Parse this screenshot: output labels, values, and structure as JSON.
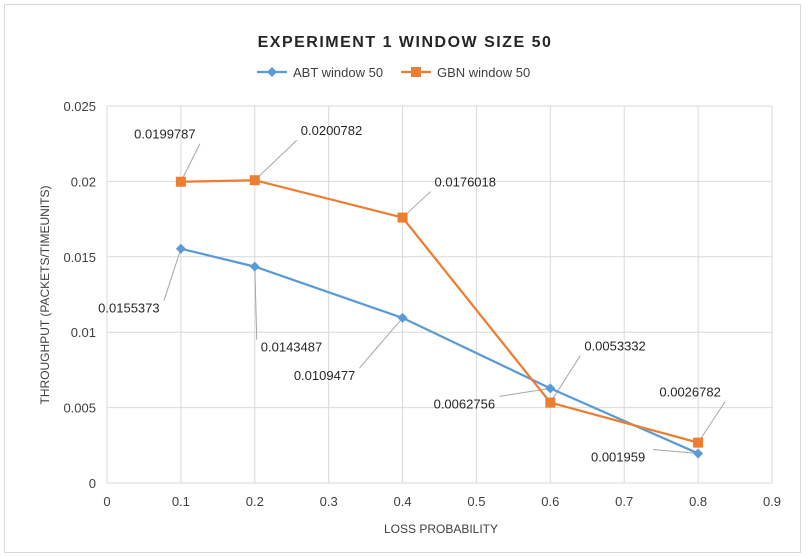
{
  "chart_data": {
    "type": "line",
    "title": "EXPERIMENT 1 WINDOW SIZE 50",
    "xlabel": "LOSS PROBABILITY",
    "ylabel": "THROUGHPUT   (PACKETS/TIMEUNITS)",
    "xlim": [
      0,
      0.9
    ],
    "ylim": [
      0,
      0.025
    ],
    "x_ticks": [
      "0",
      "0.1",
      "0.2",
      "0.3",
      "0.4",
      "0.5",
      "0.6",
      "0.7",
      "0.8",
      "0.9"
    ],
    "y_ticks": [
      "0",
      "0.005",
      "0.01",
      "0.015",
      "0.02",
      "0.025"
    ],
    "grid": true,
    "legend_position": "top",
    "series": [
      {
        "name": "ABT window 50",
        "color": "#5b9bd5",
        "marker": "diamond",
        "x": [
          0.1,
          0.2,
          0.4,
          0.6,
          0.8
        ],
        "y": [
          0.0155373,
          0.0143487,
          0.0109477,
          0.0062756,
          0.001959
        ],
        "labels": [
          "0.0155373",
          "0.0143487",
          "0.0109477",
          "0.0062756",
          "0.001959"
        ]
      },
      {
        "name": "GBN window 50",
        "color": "#ed7d31",
        "marker": "square",
        "x": [
          0.1,
          0.2,
          0.4,
          0.6,
          0.8
        ],
        "y": [
          0.0199787,
          0.0200782,
          0.0176018,
          0.0053332,
          0.0026782
        ],
        "labels": [
          "0.0199787",
          "0.0200782",
          "0.0176018",
          "0.0053332",
          "0.0026782"
        ]
      }
    ]
  }
}
